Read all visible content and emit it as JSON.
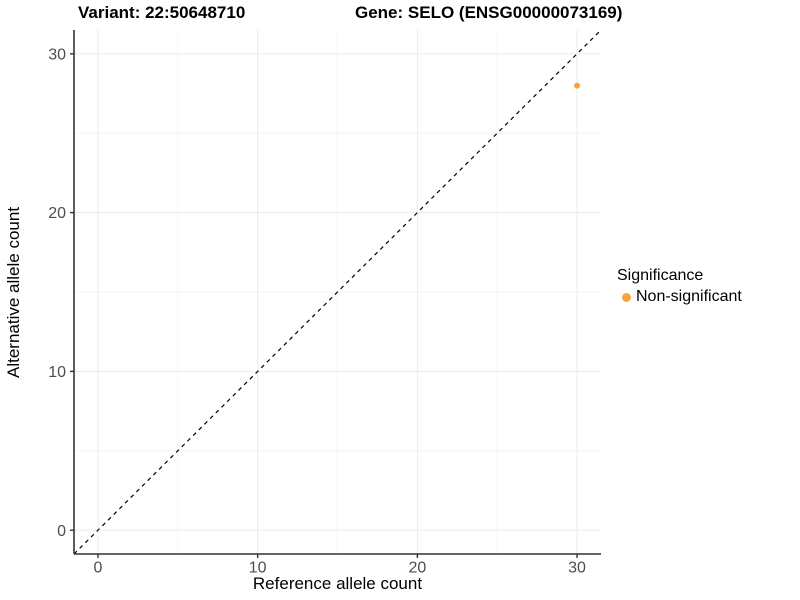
{
  "chart_data": {
    "type": "scatter",
    "title_left": "Variant: 22:50648710",
    "title_right": "Gene: SELO (ENSG00000073169)",
    "xlabel": "Reference allele count",
    "ylabel": "Alternative allele count",
    "xlim": [
      -1.5,
      31.5
    ],
    "ylim": [
      -1.5,
      31.5
    ],
    "x_ticks": [
      0,
      10,
      20,
      30
    ],
    "y_ticks": [
      0,
      10,
      20,
      30
    ],
    "x_minor_ticks": [
      5,
      15,
      25
    ],
    "y_minor_ticks": [
      5,
      15,
      25
    ],
    "grid": true,
    "reference_line": {
      "type": "identity",
      "slope": 1,
      "intercept": 0,
      "style": "dashed",
      "color": "#000000"
    },
    "points": [
      {
        "x": 30,
        "y": 28,
        "series": "Non-significant"
      }
    ],
    "legend": {
      "title": "Significance",
      "position": "right",
      "entries": [
        {
          "label": "Non-significant",
          "color": "#F8A33F"
        }
      ]
    },
    "colors": {
      "axis_line": "#333333",
      "tick_label": "#4d4d4d",
      "grid_major": "#ebebeb",
      "grid_minor": "#f5f5f5",
      "background": "#ffffff"
    }
  }
}
